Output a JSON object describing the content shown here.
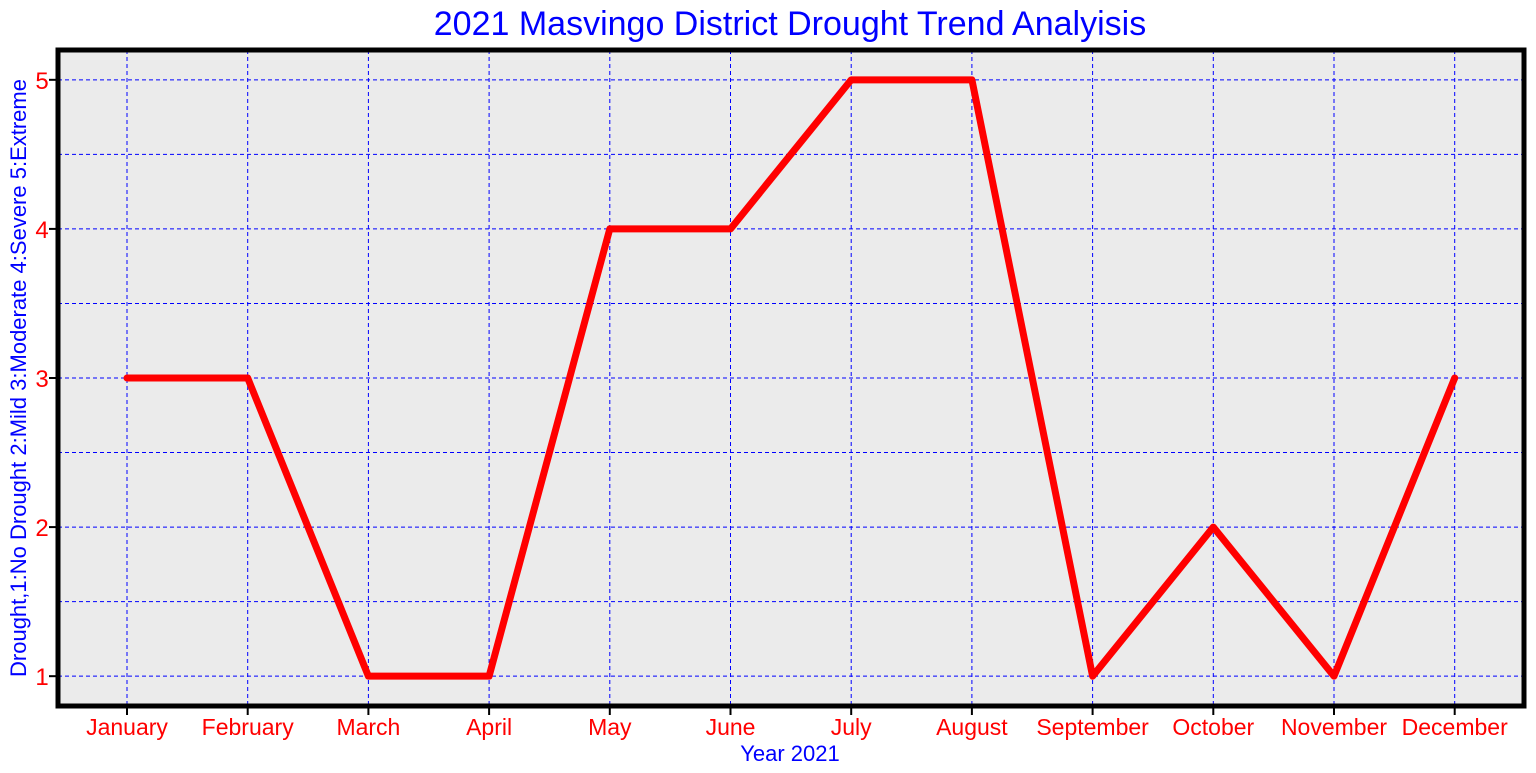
{
  "chart_data": {
    "type": "line",
    "title": "2021 Masvingo District Drought Trend Analyisis",
    "xlabel": "Year 2021",
    "ylabel": "Drought,1:No Drought 2:Mild 3:Moderate 4:Severe 5:Extreme",
    "categories": [
      "January",
      "February",
      "March",
      "April",
      "May",
      "June",
      "July",
      "August",
      "September",
      "October",
      "November",
      "December"
    ],
    "series": [
      {
        "values": [
          3,
          3,
          1,
          1,
          4,
          4,
          5,
          5,
          1,
          2,
          1,
          3
        ]
      }
    ],
    "ylim": [
      0.8,
      5.2
    ],
    "yticks": [
      "1",
      "2",
      "3",
      "4",
      "5"
    ],
    "grid": true,
    "legend": "none",
    "colors": {
      "line": "#ff0000",
      "grid": "#0000ff",
      "plot_background": "#ebebeb",
      "frame": "#000000",
      "title": "#0000ff",
      "tick_labels": "#ff0000"
    }
  }
}
